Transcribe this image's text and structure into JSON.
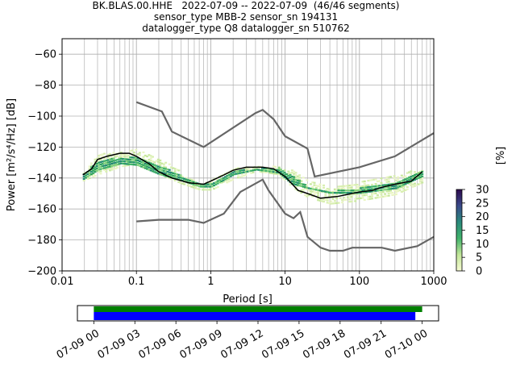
{
  "header": {
    "title_line1": "BK.BLAS.00.HHE   2022-07-09 -- 2022-07-09  (46/46 segments)",
    "title_line2": "sensor_type MBB-2 sensor_sn 194131",
    "title_line3": "datalogger_type Q8 datalogger_sn 510762"
  },
  "colors": {
    "median": "#000000",
    "noise_models": "#666666",
    "timeline_data": "#008000",
    "timeline_psd": "#0000ff",
    "grid": "#b0b0b0",
    "colormap_low": "#f7fbd3",
    "colormap_mid": "#2ca25f",
    "colormap_high": "#2d0a4e"
  },
  "chart_data": [
    {
      "type": "heatmap",
      "title": "",
      "xlabel": "Period [s]",
      "ylabel": "Power [m²/s⁴/Hz] [dB]",
      "x_scale": "log",
      "xlim": [
        0.01,
        1000
      ],
      "ylim": [
        -200,
        -50
      ],
      "x_ticks": [
        "0.01",
        "0.1",
        "1",
        "10",
        "100",
        "1000"
      ],
      "y_ticks": [
        "−60",
        "−80",
        "−100",
        "−120",
        "−140",
        "−160",
        "−180",
        "−200"
      ],
      "grid": true,
      "colorbar": {
        "label": "[%]",
        "ticks": [
          "0",
          "5",
          "10",
          "15",
          "20",
          "25",
          "30"
        ],
        "range": [
          0,
          30
        ]
      },
      "median": {
        "x": [
          0.019,
          0.025,
          0.03,
          0.04,
          0.06,
          0.08,
          0.1,
          0.15,
          0.2,
          0.3,
          0.5,
          0.8,
          1,
          1.5,
          2,
          3,
          4,
          5,
          7,
          10,
          15,
          20,
          30,
          50,
          100,
          150,
          200,
          300,
          500,
          700
        ],
        "y": [
          -138,
          -134,
          -128,
          -126,
          -124,
          -124,
          -126,
          -131,
          -136,
          -140,
          -143,
          -144,
          -142,
          -138,
          -135,
          -133,
          -133,
          -133,
          -134,
          -139,
          -148,
          -150,
          -153,
          -152,
          -149,
          -148,
          -146,
          -144,
          -142,
          -136
        ]
      },
      "noise_model_high": {
        "x": [
          0.1,
          0.22,
          0.3,
          0.8,
          4,
          5,
          7,
          10,
          20,
          25,
          100,
          300,
          1000
        ],
        "y": [
          -91,
          -97,
          -110,
          -120,
          -98,
          -96,
          -102,
          -113,
          -121,
          -139,
          -133,
          -126,
          -111
        ]
      },
      "noise_model_low": {
        "x": [
          0.1,
          0.2,
          0.5,
          0.8,
          1.5,
          2.5,
          5,
          6,
          10,
          13,
          16,
          20,
          30,
          40,
          60,
          80,
          100,
          200,
          300,
          600,
          1000
        ],
        "y": [
          -168,
          -167,
          -167,
          -169,
          -163,
          -149,
          -141,
          -148,
          -163,
          -166,
          -162,
          -178,
          -185,
          -187,
          -187,
          -185,
          -185,
          -185,
          -187,
          -184,
          -178
        ]
      },
      "density_bands": [
        {
          "x": [
            0.019,
            0.03,
            0.06,
            0.1,
            0.2,
            0.4,
            0.7,
            1,
            2,
            4,
            8,
            12,
            20,
            40,
            100,
            300,
            700
          ],
          "low": [
            -141,
            -137,
            -132,
            -130,
            -137,
            -143,
            -147,
            -147,
            -140,
            -135,
            -137,
            -145,
            -152,
            -156,
            -154,
            -150,
            -142
          ],
          "high": [
            -136,
            -124,
            -122,
            -121,
            -126,
            -136,
            -144,
            -141,
            -133,
            -132,
            -132,
            -134,
            -140,
            -146,
            -142,
            -138,
            -132
          ],
          "level": "low"
        },
        {
          "x": [
            0.019,
            0.03,
            0.06,
            0.1,
            0.2,
            0.4,
            0.7,
            1,
            2,
            4,
            8,
            12,
            20,
            40,
            100,
            300,
            700
          ],
          "low": [
            -140,
            -134,
            -130,
            -131,
            -137,
            -141,
            -145,
            -145,
            -137,
            -134,
            -136,
            -143,
            -146,
            -149,
            -149,
            -146,
            -138
          ],
          "high": [
            -137,
            -128,
            -126,
            -126,
            -131,
            -138,
            -143,
            -143,
            -135,
            -133,
            -133,
            -138,
            -145,
            -148,
            -146,
            -142,
            -135
          ],
          "level": "mid"
        }
      ]
    },
    {
      "type": "timeline",
      "tick_labels": [
        "07-09 00",
        "07-09 03",
        "07-09 06",
        "07-09 09",
        "07-09 12",
        "07-09 15",
        "07-09 18",
        "07-09 21",
        "07-10 00"
      ],
      "range_hours": [
        -1.2,
        25.2
      ],
      "data_bar_hours": [
        0,
        24.0
      ],
      "psd_bar_hours": [
        0,
        23.5
      ]
    }
  ]
}
